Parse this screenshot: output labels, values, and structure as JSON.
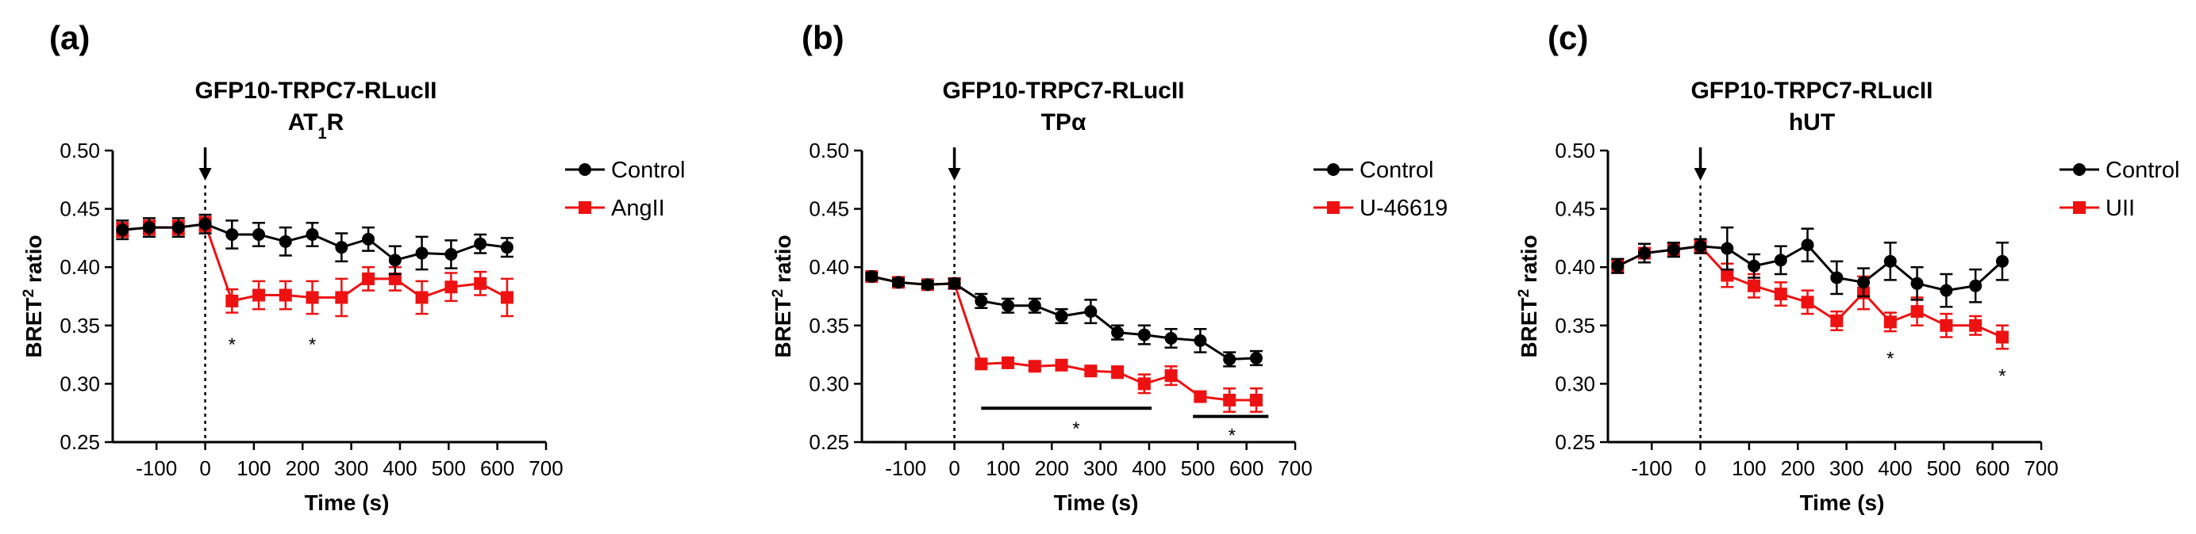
{
  "colors": {
    "control": "#000000",
    "treatment": "#ee1111"
  },
  "chart_data": [
    {
      "type": "line",
      "panel_label": "(a)",
      "title": "GFP10-TRPC7-RLucII",
      "subtitle": {
        "main": "AT",
        "sub": "1",
        "suffix": "R"
      },
      "xlabel": "Time (s)",
      "ylabel": {
        "main": "BRET",
        "sup": "2",
        "suffix": " ratio"
      },
      "xlim": [
        -190,
        700
      ],
      "ylim": [
        0.25,
        0.5
      ],
      "xticks": [
        -100,
        0,
        100,
        200,
        300,
        400,
        500,
        600,
        700
      ],
      "yticks": [
        "0.25",
        "0.30",
        "0.35",
        "0.40",
        "0.45",
        "0.50"
      ],
      "stimulus_x": 0,
      "series": [
        {
          "name": "Control",
          "marker": "circle",
          "color": "#000000",
          "x": [
            -170,
            -115,
            -55,
            0,
            55,
            110,
            165,
            220,
            280,
            335,
            390,
            445,
            505,
            565,
            620
          ],
          "y": [
            0.432,
            0.434,
            0.434,
            0.437,
            0.428,
            0.428,
            0.422,
            0.428,
            0.417,
            0.424,
            0.406,
            0.412,
            0.411,
            0.42,
            0.417
          ],
          "err": [
            0.008,
            0.008,
            0.008,
            0.008,
            0.012,
            0.01,
            0.012,
            0.01,
            0.012,
            0.01,
            0.012,
            0.014,
            0.012,
            0.008,
            0.008
          ]
        },
        {
          "name": "AngII",
          "marker": "square",
          "color": "#ee1111",
          "x": [
            -170,
            -115,
            -55,
            0,
            55,
            110,
            165,
            220,
            280,
            335,
            390,
            445,
            505,
            565,
            620
          ],
          "y": [
            0.432,
            0.434,
            0.434,
            0.437,
            0.371,
            0.376,
            0.376,
            0.374,
            0.374,
            0.39,
            0.39,
            0.374,
            0.383,
            0.386,
            0.374
          ],
          "err": [
            0.006,
            0.006,
            0.006,
            0.006,
            0.01,
            0.012,
            0.012,
            0.014,
            0.016,
            0.01,
            0.01,
            0.014,
            0.012,
            0.01,
            0.016
          ]
        }
      ],
      "annotations": [
        {
          "text": "*",
          "x": 55,
          "y": 0.335
        },
        {
          "text": "*",
          "x": 220,
          "y": 0.335
        }
      ],
      "bars": []
    },
    {
      "type": "line",
      "panel_label": "(b)",
      "title": "GFP10-TRPC7-RLucII",
      "subtitle": {
        "main": "TPα",
        "sub": "",
        "suffix": ""
      },
      "xlabel": "Time (s)",
      "ylabel": {
        "main": "BRET",
        "sup": "2",
        "suffix": " ratio"
      },
      "xlim": [
        -190,
        700
      ],
      "ylim": [
        0.25,
        0.5
      ],
      "xticks": [
        -100,
        0,
        100,
        200,
        300,
        400,
        500,
        600,
        700
      ],
      "yticks": [
        "0.25",
        "0.30",
        "0.35",
        "0.40",
        "0.45",
        "0.50"
      ],
      "stimulus_x": 0,
      "series": [
        {
          "name": "Control",
          "marker": "circle",
          "color": "#000000",
          "x": [
            -170,
            -115,
            -55,
            0,
            55,
            110,
            165,
            220,
            280,
            335,
            390,
            445,
            505,
            565,
            620
          ],
          "y": [
            0.392,
            0.387,
            0.385,
            0.386,
            0.371,
            0.367,
            0.367,
            0.358,
            0.362,
            0.344,
            0.342,
            0.339,
            0.337,
            0.321,
            0.322
          ],
          "err": [
            0.003,
            0.003,
            0.003,
            0.004,
            0.006,
            0.006,
            0.006,
            0.006,
            0.01,
            0.006,
            0.008,
            0.008,
            0.01,
            0.006,
            0.006
          ]
        },
        {
          "name": "U-46619",
          "marker": "square",
          "color": "#ee1111",
          "x": [
            -170,
            -115,
            -55,
            0,
            55,
            110,
            165,
            220,
            280,
            335,
            390,
            445,
            505,
            565,
            620
          ],
          "y": [
            0.392,
            0.387,
            0.385,
            0.386,
            0.317,
            0.318,
            0.315,
            0.316,
            0.311,
            0.31,
            0.3,
            0.307,
            0.289,
            0.286,
            0.286
          ],
          "err": [
            0.003,
            0.003,
            0.003,
            0.004,
            0.003,
            0.003,
            0.003,
            0.003,
            0.003,
            0.005,
            0.008,
            0.008,
            0.003,
            0.01,
            0.01
          ]
        }
      ],
      "annotations": [
        {
          "text": "*",
          "x": 250,
          "y": 0.263
        },
        {
          "text": "*",
          "x": 570,
          "y": 0.257
        }
      ],
      "bars": [
        {
          "x1": 55,
          "x2": 405,
          "y": 0.279
        },
        {
          "x1": 490,
          "x2": 645,
          "y": 0.272
        }
      ]
    },
    {
      "type": "line",
      "panel_label": "(c)",
      "title": "GFP10-TRPC7-RLucII",
      "subtitle": {
        "main": "hUT",
        "sub": "",
        "suffix": ""
      },
      "xlabel": "Time (s)",
      "ylabel": {
        "main": "BRET",
        "sup": "2",
        "suffix": " ratio"
      },
      "xlim": [
        -190,
        700
      ],
      "ylim": [
        0.25,
        0.5
      ],
      "xticks": [
        -100,
        0,
        100,
        200,
        300,
        400,
        500,
        600,
        700
      ],
      "yticks": [
        "0.25",
        "0.30",
        "0.35",
        "0.40",
        "0.45",
        "0.50"
      ],
      "stimulus_x": 0,
      "series": [
        {
          "name": "Control",
          "marker": "circle",
          "color": "#000000",
          "x": [
            -170,
            -115,
            -55,
            0,
            55,
            110,
            165,
            220,
            280,
            335,
            390,
            445,
            505,
            565,
            620
          ],
          "y": [
            0.401,
            0.412,
            0.415,
            0.418,
            0.416,
            0.401,
            0.406,
            0.419,
            0.391,
            0.387,
            0.405,
            0.386,
            0.38,
            0.384,
            0.405
          ],
          "err": [
            0.006,
            0.008,
            0.006,
            0.006,
            0.018,
            0.01,
            0.012,
            0.014,
            0.014,
            0.012,
            0.016,
            0.014,
            0.014,
            0.014,
            0.016
          ]
        },
        {
          "name": "UII",
          "marker": "square",
          "color": "#ee1111",
          "x": [
            -170,
            -115,
            -55,
            0,
            55,
            110,
            165,
            220,
            280,
            335,
            390,
            445,
            505,
            565,
            620
          ],
          "y": [
            0.401,
            0.412,
            0.415,
            0.418,
            0.393,
            0.384,
            0.377,
            0.37,
            0.354,
            0.378,
            0.353,
            0.362,
            0.35,
            0.35,
            0.34
          ],
          "err": [
            0.006,
            0.008,
            0.006,
            0.006,
            0.01,
            0.01,
            0.01,
            0.01,
            0.008,
            0.014,
            0.008,
            0.012,
            0.01,
            0.008,
            0.01
          ]
        }
      ],
      "annotations": [
        {
          "text": "*",
          "x": 390,
          "y": 0.323
        },
        {
          "text": "*",
          "x": 620,
          "y": 0.308
        }
      ],
      "bars": []
    }
  ]
}
